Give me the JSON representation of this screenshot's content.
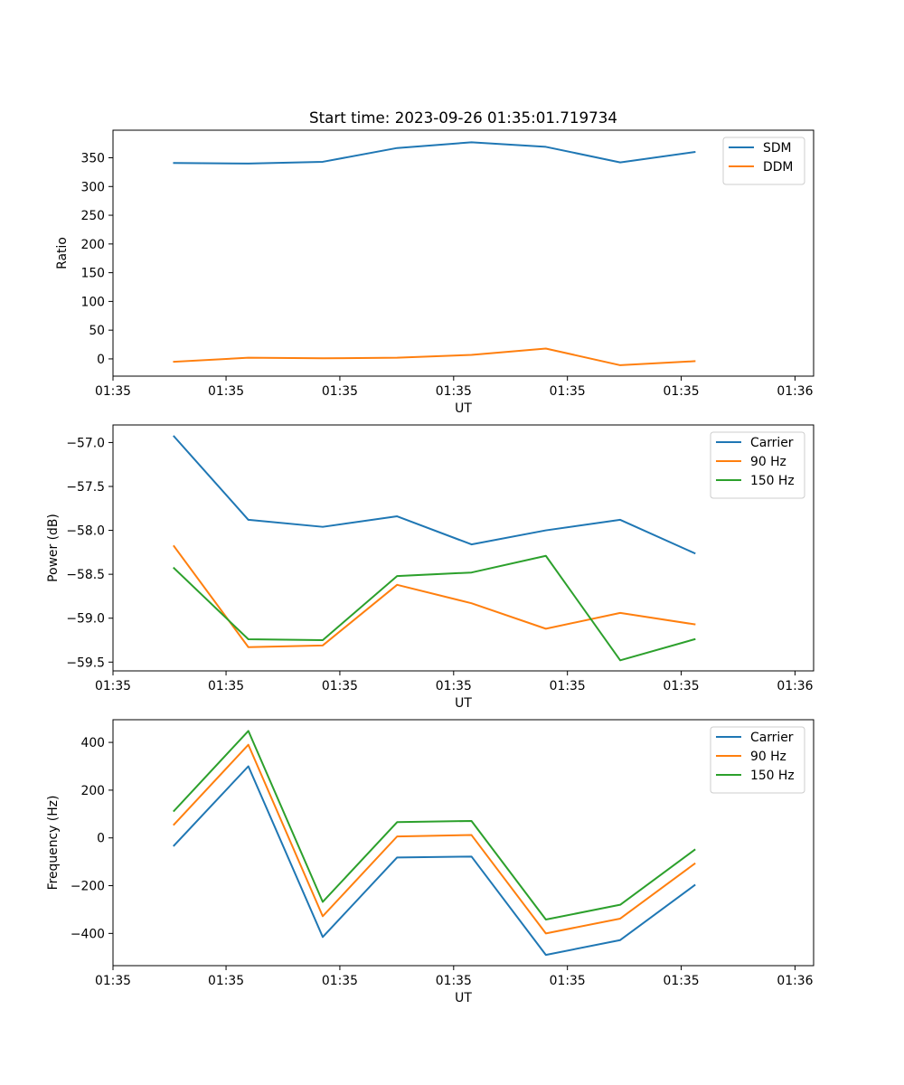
{
  "figure_title": "Start time: 2023-09-26 01:35:01.719734",
  "colors": {
    "blue": "#1f77b4",
    "orange": "#ff7f0e",
    "green": "#2ca02c"
  },
  "chart_data": [
    {
      "type": "line",
      "title": "Start time: 2023-09-26 01:35:01.719734",
      "xlabel": "UT",
      "ylabel": "Ratio",
      "x": [
        1,
        2,
        3,
        4,
        5,
        6,
        7,
        8
      ],
      "xlim": [
        0.18,
        9.6
      ],
      "ylim": [
        -30,
        398
      ],
      "xticks": [
        {
          "value": 0.18,
          "label": "01:35"
        },
        {
          "value": 1.7,
          "label": "01:35"
        },
        {
          "value": 3.23,
          "label": "01:35"
        },
        {
          "value": 4.76,
          "label": "01:35"
        },
        {
          "value": 6.29,
          "label": "01:35"
        },
        {
          "value": 7.82,
          "label": "01:35"
        },
        {
          "value": 9.35,
          "label": "01:36"
        }
      ],
      "yticks": [
        0,
        50,
        100,
        150,
        200,
        250,
        300,
        350
      ],
      "ytick_labels": [
        "0",
        "50",
        "100",
        "150",
        "200",
        "250",
        "300",
        "350"
      ],
      "legend_position": "top-right",
      "series": [
        {
          "name": "SDM",
          "color": "#1f77b4",
          "values": [
            341,
            340,
            343,
            367,
            377,
            369,
            342,
            360
          ]
        },
        {
          "name": "DDM",
          "color": "#ff7f0e",
          "values": [
            -5,
            2,
            1,
            2,
            7,
            18,
            -11,
            -4
          ]
        }
      ]
    },
    {
      "type": "line",
      "title": "",
      "xlabel": "UT",
      "ylabel": "Power (dB)",
      "x": [
        1,
        2,
        3,
        4,
        5,
        6,
        7,
        8
      ],
      "xlim": [
        0.18,
        9.6
      ],
      "ylim": [
        -59.6,
        -56.8
      ],
      "xticks": [
        {
          "value": 0.18,
          "label": "01:35"
        },
        {
          "value": 1.7,
          "label": "01:35"
        },
        {
          "value": 3.23,
          "label": "01:35"
        },
        {
          "value": 4.76,
          "label": "01:35"
        },
        {
          "value": 6.29,
          "label": "01:35"
        },
        {
          "value": 7.82,
          "label": "01:35"
        },
        {
          "value": 9.35,
          "label": "01:36"
        }
      ],
      "yticks": [
        -59.5,
        -59.0,
        -58.5,
        -58.0,
        -57.5,
        -57.0
      ],
      "ytick_labels": [
        "−59.5",
        "−59.0",
        "−58.5",
        "−58.0",
        "−57.5",
        "−57.0"
      ],
      "legend_position": "top-right",
      "series": [
        {
          "name": "Carrier",
          "color": "#1f77b4",
          "values": [
            -56.93,
            -57.88,
            -57.96,
            -57.84,
            -58.16,
            -58.0,
            -57.88,
            -58.26
          ]
        },
        {
          "name": "90 Hz",
          "color": "#ff7f0e",
          "values": [
            -58.18,
            -59.33,
            -59.31,
            -58.62,
            -58.83,
            -59.12,
            -58.94,
            -59.07
          ]
        },
        {
          "name": "150 Hz",
          "color": "#2ca02c",
          "values": [
            -58.43,
            -59.24,
            -59.25,
            -58.52,
            -58.48,
            -58.29,
            -59.48,
            -59.24
          ]
        }
      ]
    },
    {
      "type": "line",
      "title": "",
      "xlabel": "UT",
      "ylabel": "Frequency (Hz)",
      "x": [
        1,
        2,
        3,
        4,
        5,
        6,
        7,
        8
      ],
      "xlim": [
        0.18,
        9.6
      ],
      "ylim": [
        -535,
        495
      ],
      "xticks": [
        {
          "value": 0.18,
          "label": "01:35"
        },
        {
          "value": 1.7,
          "label": "01:35"
        },
        {
          "value": 3.23,
          "label": "01:35"
        },
        {
          "value": 4.76,
          "label": "01:35"
        },
        {
          "value": 6.29,
          "label": "01:35"
        },
        {
          "value": 7.82,
          "label": "01:35"
        },
        {
          "value": 9.35,
          "label": "01:36"
        }
      ],
      "yticks": [
        -400,
        -200,
        0,
        200,
        400
      ],
      "ytick_labels": [
        "−400",
        "−200",
        "0",
        "200",
        "400"
      ],
      "legend_position": "top-right",
      "series": [
        {
          "name": "Carrier",
          "color": "#1f77b4",
          "values": [
            -32,
            300,
            -415,
            -82,
            -78,
            -490,
            -428,
            -198
          ]
        },
        {
          "name": "90 Hz",
          "color": "#ff7f0e",
          "values": [
            56,
            390,
            -328,
            6,
            12,
            -400,
            -338,
            -108
          ]
        },
        {
          "name": "150 Hz",
          "color": "#2ca02c",
          "values": [
            113,
            448,
            -268,
            66,
            71,
            -342,
            -280,
            -50
          ]
        }
      ]
    }
  ]
}
